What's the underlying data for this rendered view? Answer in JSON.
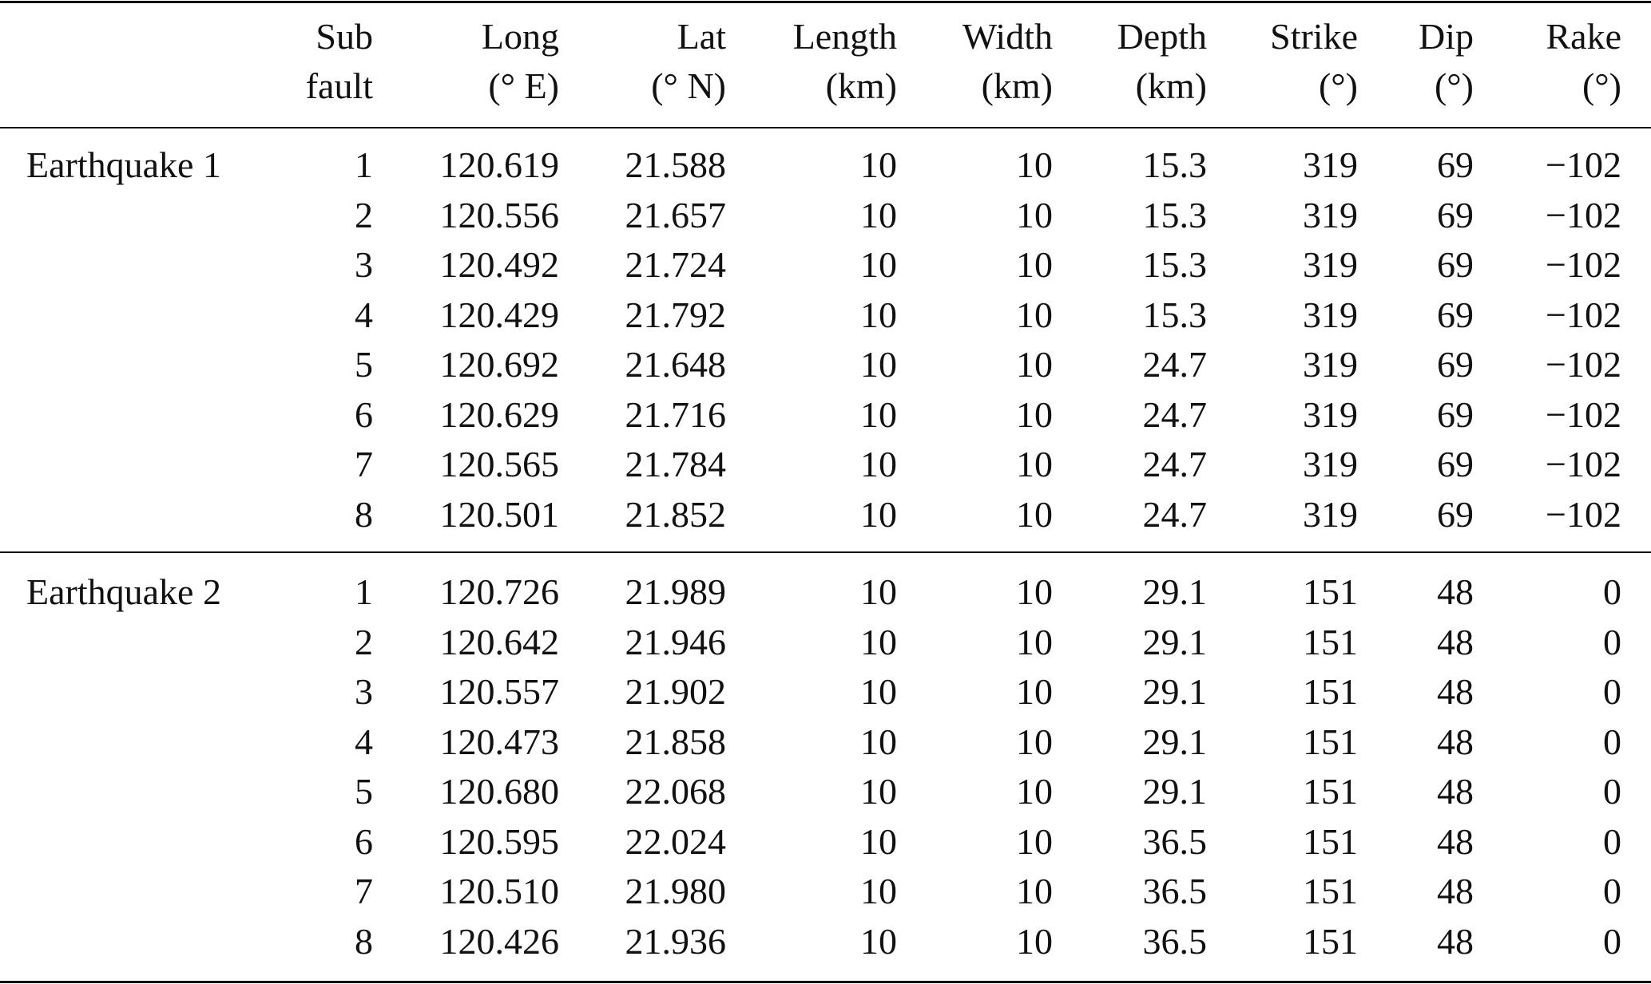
{
  "header": {
    "columns": [
      [
        "Sub",
        "fault"
      ],
      [
        "Long",
        "(° E)"
      ],
      [
        "Lat",
        "(° N)"
      ],
      [
        "Length",
        "(km)"
      ],
      [
        "Width",
        "(km)"
      ],
      [
        "Depth",
        "(km)"
      ],
      [
        "Strike",
        "(°)"
      ],
      [
        "Dip",
        "(°)"
      ],
      [
        "Rake",
        "(°)"
      ]
    ]
  },
  "groups": [
    {
      "label": "Earthquake 1",
      "rows": [
        [
          "1",
          "120.619",
          "21.588",
          "10",
          "10",
          "15.3",
          "319",
          "69",
          "−102"
        ],
        [
          "2",
          "120.556",
          "21.657",
          "10",
          "10",
          "15.3",
          "319",
          "69",
          "−102"
        ],
        [
          "3",
          "120.492",
          "21.724",
          "10",
          "10",
          "15.3",
          "319",
          "69",
          "−102"
        ],
        [
          "4",
          "120.429",
          "21.792",
          "10",
          "10",
          "15.3",
          "319",
          "69",
          "−102"
        ],
        [
          "5",
          "120.692",
          "21.648",
          "10",
          "10",
          "24.7",
          "319",
          "69",
          "−102"
        ],
        [
          "6",
          "120.629",
          "21.716",
          "10",
          "10",
          "24.7",
          "319",
          "69",
          "−102"
        ],
        [
          "7",
          "120.565",
          "21.784",
          "10",
          "10",
          "24.7",
          "319",
          "69",
          "−102"
        ],
        [
          "8",
          "120.501",
          "21.852",
          "10",
          "10",
          "24.7",
          "319",
          "69",
          "−102"
        ]
      ]
    },
    {
      "label": "Earthquake 2",
      "rows": [
        [
          "1",
          "120.726",
          "21.989",
          "10",
          "10",
          "29.1",
          "151",
          "48",
          "0"
        ],
        [
          "2",
          "120.642",
          "21.946",
          "10",
          "10",
          "29.1",
          "151",
          "48",
          "0"
        ],
        [
          "3",
          "120.557",
          "21.902",
          "10",
          "10",
          "29.1",
          "151",
          "48",
          "0"
        ],
        [
          "4",
          "120.473",
          "21.858",
          "10",
          "10",
          "29.1",
          "151",
          "48",
          "0"
        ],
        [
          "5",
          "120.680",
          "22.068",
          "10",
          "10",
          "29.1",
          "151",
          "48",
          "0"
        ],
        [
          "6",
          "120.595",
          "22.024",
          "10",
          "10",
          "36.5",
          "151",
          "48",
          "0"
        ],
        [
          "7",
          "120.510",
          "21.980",
          "10",
          "10",
          "36.5",
          "151",
          "48",
          "0"
        ],
        [
          "8",
          "120.426",
          "21.936",
          "10",
          "10",
          "36.5",
          "151",
          "48",
          "0"
        ]
      ]
    }
  ]
}
